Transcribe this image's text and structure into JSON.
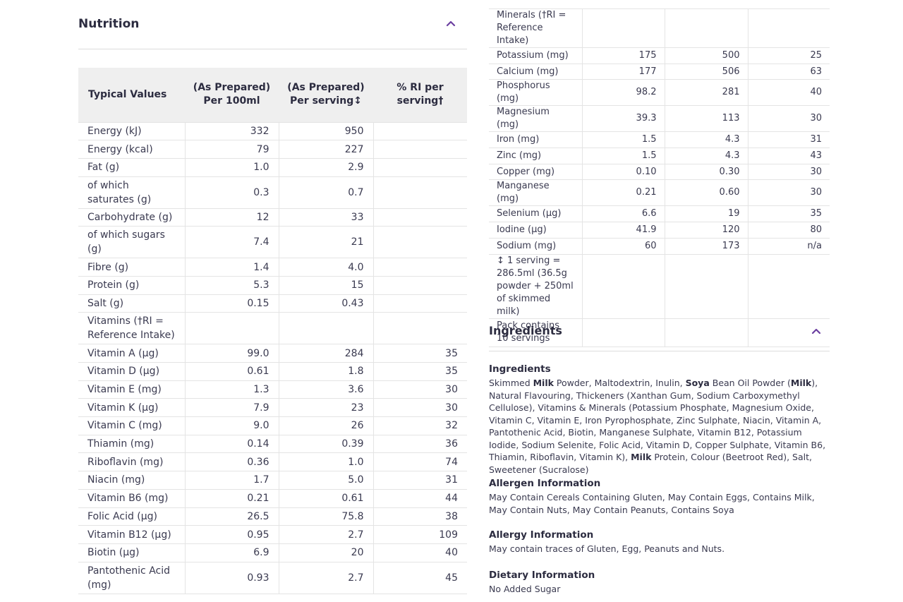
{
  "nutrition": {
    "title": "Nutrition",
    "headers": [
      "Typical Values",
      "(As Prepared)\nPer 100ml",
      "(As Prepared)\nPer serving↕",
      "% RI per\nserving†"
    ],
    "rows": [
      [
        "Energy (kJ)",
        "332",
        "950",
        ""
      ],
      [
        "Energy (kcal)",
        "79",
        "227",
        ""
      ],
      [
        "Fat (g)",
        "1.0",
        "2.9",
        ""
      ],
      [
        "of which saturates (g)",
        "0.3",
        "0.7",
        ""
      ],
      [
        "Carbohydrate (g)",
        "12",
        "33",
        ""
      ],
      [
        "of which sugars (g)",
        "7.4",
        "21",
        ""
      ],
      [
        "Fibre (g)",
        "1.4",
        "4.0",
        ""
      ],
      [
        "Protein (g)",
        "5.3",
        "15",
        ""
      ],
      [
        "Salt (g)",
        "0.15",
        "0.43",
        ""
      ],
      [
        "Vitamins (†RI = Reference Intake)",
        "",
        "",
        ""
      ],
      [
        "Vitamin A (µg)",
        "99.0",
        "284",
        "35"
      ],
      [
        "Vitamin D (µg)",
        "0.61",
        "1.8",
        "35"
      ],
      [
        "Vitamin E (mg)",
        "1.3",
        "3.6",
        "30"
      ],
      [
        "Vitamin K (µg)",
        "7.9",
        "23",
        "30"
      ],
      [
        "Vitamin C (mg)",
        "9.0",
        "26",
        "32"
      ],
      [
        "Thiamin (mg)",
        "0.14",
        "0.39",
        "36"
      ],
      [
        "Riboflavin (mg)",
        "0.36",
        "1.0",
        "74"
      ],
      [
        "Niacin (mg)",
        "1.7",
        "5.0",
        "31"
      ],
      [
        "Vitamin B6 (mg)",
        "0.21",
        "0.61",
        "44"
      ],
      [
        "Folic Acid (µg)",
        "26.5",
        "75.8",
        "38"
      ],
      [
        "Vitamin B12 (µg)",
        "0.95",
        "2.7",
        "109"
      ],
      [
        "Biotin (µg)",
        "6.9",
        "20",
        "40"
      ],
      [
        "Pantothenic Acid (mg)",
        "0.93",
        "2.7",
        "45"
      ]
    ]
  },
  "minerals": {
    "rows": [
      [
        "Minerals (†RI = Reference Intake)",
        "",
        "",
        ""
      ],
      [
        "Potassium (mg)",
        "175",
        "500",
        "25"
      ],
      [
        "Calcium (mg)",
        "177",
        "506",
        "63"
      ],
      [
        "Phosphorus (mg)",
        "98.2",
        "281",
        "40"
      ],
      [
        "Magnesium (mg)",
        "39.3",
        "113",
        "30"
      ],
      [
        "Iron (mg)",
        "1.5",
        "4.3",
        "31"
      ],
      [
        "Zinc (mg)",
        "1.5",
        "4.3",
        "43"
      ],
      [
        "Copper (mg)",
        "0.10",
        "0.30",
        "30"
      ],
      [
        "Manganese (mg)",
        "0.21",
        "0.60",
        "30"
      ],
      [
        "Selenium (µg)",
        "6.6",
        "19",
        "35"
      ],
      [
        "Iodine (µg)",
        "41.9",
        "120",
        "80"
      ],
      [
        "Sodium (mg)",
        "60",
        "173",
        "n/a"
      ],
      [
        "↕ 1 serving = 286.5ml (36.5g powder + 250ml of skimmed milk)",
        "",
        "",
        ""
      ],
      [
        "Pack contains 10 servings",
        "",
        "",
        ""
      ]
    ]
  },
  "ingredients_section": {
    "title": "Ingredients",
    "blocks": [
      {
        "title": "Ingredients",
        "segments": [
          {
            "t": "Skimmed ",
            "b": false
          },
          {
            "t": "Milk",
            "b": true
          },
          {
            "t": " Powder, Maltodextrin, Inulin, ",
            "b": false
          },
          {
            "t": "Soya",
            "b": true
          },
          {
            "t": " Bean Oil Powder (",
            "b": false
          },
          {
            "t": "Milk",
            "b": true
          },
          {
            "t": "), Natural Flavouring, Thickeners (Xanthan Gum, Sodium Carboxymethyl Cellulose), Vitamins & Minerals (Potassium Phosphate, Magnesium Oxide, Vitamin C, Vitamin E, Iron Pyrophosphate, Zinc Sulphate, Niacin, Vitamin A, Pantothenic Acid, Biotin, Manganese Sulphate, Vitamin B12, Potassium Iodide, Sodium Selenite, Folic Acid, Vitamin D, Copper Sulphate, Vitamin B6, Thiamin, Riboflavin, Vitamin K), ",
            "b": false
          },
          {
            "t": "Milk",
            "b": true
          },
          {
            "t": " Protein, Colour (Beetroot Red), Salt, Sweetener (Sucralose)",
            "b": false
          }
        ]
      },
      {
        "title": "Allergen Information",
        "segments": [
          {
            "t": "May Contain Cereals Containing Gluten, May Contain Eggs, Contains Milk, May Contain Nuts, May Contain Peanuts, Contains Soya",
            "b": false
          }
        ]
      },
      {
        "title": "Allergy Information",
        "segments": [
          {
            "t": "May contain traces of Gluten, Egg, Peanuts and Nuts.",
            "b": false
          }
        ]
      },
      {
        "title": "Dietary Information",
        "segments": [
          {
            "t": "No Added Sugar",
            "b": false
          }
        ]
      }
    ]
  },
  "icons": {
    "collapse": "chevron-up-icon"
  }
}
